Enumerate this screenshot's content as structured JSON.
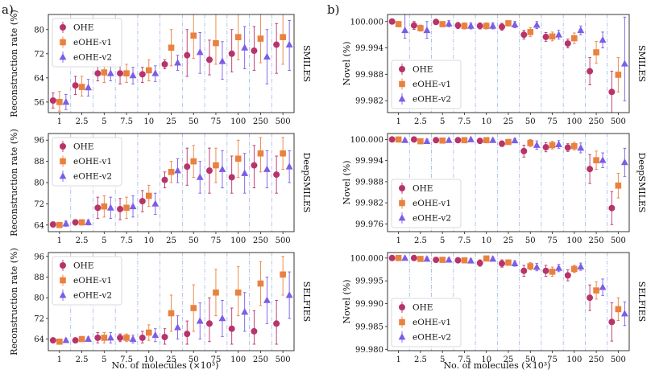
{
  "figure": {
    "panel_letters": [
      "a)",
      "b)"
    ],
    "shared_xlabel": "No. of molecules (×10³)"
  },
  "chart_data": [
    {
      "type": "scatter",
      "panel": "a)",
      "row": "SMILES",
      "ylabel": "Reconstruction rate (%)",
      "right_label": "SMILES",
      "categories": [
        "1",
        "2.5",
        "5",
        "7.5",
        "10",
        "25",
        "50",
        "75",
        "100",
        "250",
        "500"
      ],
      "ylim": [
        52.5,
        85
      ],
      "yticks": [
        56,
        64,
        72,
        80
      ],
      "ytick_labels": [
        "56",
        "64",
        "72",
        "80"
      ],
      "legend_position": "top-left",
      "series": [
        {
          "name": "OHE",
          "color": "#b8336a",
          "marker": "circle",
          "values": [
            56.5,
            61.5,
            65.5,
            65.5,
            65.2,
            68.5,
            71.5,
            70,
            72,
            73,
            75
          ],
          "low": [
            54,
            58.5,
            63,
            62,
            62.5,
            67,
            64.5,
            65,
            66,
            66.5,
            65.5
          ],
          "high": [
            59,
            64.5,
            68.5,
            68.5,
            67.5,
            70,
            80,
            76.5,
            80,
            81,
            82
          ]
        },
        {
          "name": "eOHE-v1",
          "color": "#e9813f",
          "marker": "square",
          "values": [
            56,
            61,
            65.8,
            65.5,
            66.5,
            74,
            78,
            75.5,
            77.5,
            77,
            77.5
          ],
          "low": [
            53,
            58,
            62.5,
            62.5,
            63,
            68,
            70.5,
            68.5,
            70,
            69,
            68.5
          ],
          "high": [
            59.5,
            64.5,
            69,
            68.5,
            70,
            80,
            85,
            85,
            85,
            85,
            85
          ]
        },
        {
          "name": "eOHE-v2",
          "color": "#7b5de6",
          "marker": "triangle",
          "values": [
            56,
            60.8,
            65.5,
            64.8,
            65.5,
            69,
            72.5,
            69.5,
            74,
            71,
            75
          ],
          "low": [
            53.5,
            58,
            63,
            62,
            62.8,
            66.5,
            65.5,
            63.5,
            67,
            62,
            66.5
          ],
          "high": [
            58.5,
            63.5,
            68,
            67.5,
            68,
            71.5,
            79,
            76,
            81,
            80,
            83
          ]
        }
      ]
    },
    {
      "type": "scatter",
      "panel": "a)",
      "row": "DeepSMILES",
      "ylabel": "Reconstruction rate (%)",
      "right_label": "DeepSMILES",
      "categories": [
        "1",
        "2.5",
        "5",
        "7.5",
        "10",
        "25",
        "50",
        "75",
        "100",
        "250",
        "500"
      ],
      "ylim": [
        61.5,
        98.5
      ],
      "yticks": [
        64,
        72,
        80,
        88,
        96
      ],
      "ytick_labels": [
        "64",
        "72",
        "80",
        "88",
        "96"
      ],
      "legend_position": "top-left",
      "series": [
        {
          "name": "OHE",
          "color": "#b8336a",
          "marker": "circle",
          "values": [
            64.2,
            65,
            70.5,
            70,
            73,
            81,
            86,
            84.5,
            82,
            86.5,
            83
          ],
          "low": [
            63.2,
            64,
            66.5,
            66,
            69,
            78,
            79,
            76,
            76,
            78,
            76
          ],
          "high": [
            65.2,
            66,
            74.5,
            74,
            77,
            84,
            93,
            93,
            90,
            94,
            90
          ]
        },
        {
          "name": "eOHE-v1",
          "color": "#e9813f",
          "marker": "square",
          "values": [
            64,
            65,
            71,
            70.5,
            75,
            84,
            88,
            86.5,
            89,
            91,
            91
          ],
          "low": [
            63,
            64,
            67,
            66.5,
            71,
            80,
            82,
            80,
            82,
            84,
            85
          ],
          "high": [
            65,
            66,
            75,
            74.5,
            79,
            88,
            94,
            93,
            96,
            97,
            97
          ]
        },
        {
          "name": "eOHE-v2",
          "color": "#7b5de6",
          "marker": "triangle",
          "values": [
            64.5,
            65,
            70.5,
            71,
            72,
            84.5,
            82,
            85,
            83.5,
            85,
            86
          ],
          "low": [
            63.5,
            64,
            66.5,
            67,
            68,
            80,
            76,
            78,
            76,
            78,
            80
          ],
          "high": [
            65.5,
            66,
            74.5,
            75,
            76,
            89,
            88,
            92,
            91,
            92,
            92
          ]
        }
      ]
    },
    {
      "type": "scatter",
      "panel": "a)",
      "row": "SELFIES",
      "ylabel": "Reconstruction rate (%)",
      "right_label": "SELFIES",
      "categories": [
        "1",
        "2.5",
        "5",
        "7.5",
        "10",
        "25",
        "50",
        "75",
        "100",
        "250",
        "500"
      ],
      "ylim": [
        59.5,
        97.5
      ],
      "yticks": [
        64,
        72,
        80,
        88,
        96
      ],
      "ytick_labels": [
        "64",
        "72",
        "80",
        "88",
        "96"
      ],
      "legend_position": "top-left",
      "series": [
        {
          "name": "OHE",
          "color": "#b8336a",
          "marker": "circle",
          "values": [
            63.5,
            63.5,
            64.5,
            64.5,
            64.5,
            64.8,
            66,
            70,
            68,
            67,
            70
          ],
          "low": [
            62.8,
            62.8,
            62.5,
            63,
            62.5,
            62,
            62,
            63,
            62,
            62,
            62
          ],
          "high": [
            64.2,
            64.2,
            66.5,
            66,
            67,
            68,
            71,
            80,
            76,
            75,
            79
          ]
        },
        {
          "name": "eOHE-v1",
          "color": "#e9813f",
          "marker": "square",
          "values": [
            63,
            64,
            64.5,
            64.5,
            66.5,
            74,
            76,
            82,
            82,
            85.5,
            89
          ],
          "low": [
            62.3,
            63.2,
            62.5,
            63,
            63.5,
            67,
            67,
            73,
            73,
            77,
            81
          ],
          "high": [
            63.7,
            64.8,
            66.5,
            66,
            69.5,
            81,
            85,
            91,
            92,
            94,
            96
          ]
        },
        {
          "name": "eOHE-v2",
          "color": "#7b5de6",
          "marker": "triangle",
          "values": [
            63.5,
            64,
            64.5,
            64,
            65.5,
            68.5,
            71,
            72,
            74.5,
            79,
            81
          ],
          "low": [
            62.8,
            63.2,
            62.5,
            62.5,
            63,
            64,
            64,
            65,
            67,
            70,
            72
          ],
          "high": [
            64.2,
            64.8,
            66.5,
            65.5,
            68,
            73,
            78,
            79,
            82,
            88,
            90
          ]
        }
      ]
    },
    {
      "type": "scatter",
      "panel": "b)",
      "row": "SMILES",
      "ylabel": "Novel (%)",
      "right_label": "SMILES",
      "categories": [
        "1",
        "2.5",
        "5",
        "7.5",
        "10",
        "25",
        "50",
        "75",
        "100",
        "250",
        "500"
      ],
      "ylim": [
        99.9793,
        100.0016
      ],
      "yticks": [
        99.982,
        99.988,
        99.994,
        100.0
      ],
      "ytick_labels": [
        "99.982",
        "99.988",
        "99.994",
        "100.000"
      ],
      "legend_position": "bottom-left",
      "series": [
        {
          "name": "OHE",
          "color": "#b8336a",
          "marker": "circle",
          "values": [
            100.0,
            99.9991,
            99.9999,
            99.9991,
            99.999,
            99.9988,
            99.997,
            99.9965,
            99.995,
            99.9887,
            99.984
          ],
          "low": [
            100.0,
            99.9982,
            99.9993,
            99.9984,
            99.9983,
            99.998,
            99.996,
            99.9955,
            99.994,
            99.9856,
            99.9793
          ],
          "high": [
            100.0,
            100.0,
            100.0,
            99.9998,
            99.9997,
            99.9996,
            99.998,
            99.9975,
            99.996,
            99.9918,
            99.9887
          ]
        },
        {
          "name": "eOHE-v1",
          "color": "#e9813f",
          "marker": "square",
          "values": [
            99.9994,
            99.9985,
            99.9994,
            99.999,
            99.999,
            99.9996,
            99.9976,
            99.9966,
            99.9962,
            99.993,
            99.9879
          ],
          "low": [
            99.9988,
            99.9978,
            99.9988,
            99.9983,
            99.9983,
            99.999,
            99.9966,
            99.9956,
            99.995,
            99.9905,
            99.984
          ],
          "high": [
            100.0,
            99.9992,
            100.0,
            99.9997,
            99.9997,
            100.0,
            99.9986,
            99.9976,
            99.9974,
            99.9955,
            99.9918
          ]
        },
        {
          "name": "eOHE-v2",
          "color": "#7b5de6",
          "marker": "triangle",
          "values": [
            99.998,
            99.998,
            99.9995,
            99.999,
            99.999,
            99.9993,
            99.9992,
            99.997,
            99.998,
            99.9958,
            99.9904
          ],
          "low": [
            99.9962,
            99.9962,
            99.9988,
            99.9983,
            99.9983,
            99.9986,
            99.9984,
            99.996,
            99.997,
            99.994,
            99.982
          ],
          "high": [
            100.0016,
            100.0,
            100.0002,
            99.9997,
            99.9997,
            100.0,
            100.0,
            99.998,
            99.999,
            99.9976,
            100.001
          ]
        }
      ]
    },
    {
      "type": "scatter",
      "panel": "b)",
      "row": "DeepSMILES",
      "ylabel": "Novel (%)",
      "right_label": "DeepSMILES",
      "categories": [
        "1",
        "2.5",
        "5",
        "7.5",
        "10",
        "25",
        "50",
        "75",
        "100",
        "250",
        "500"
      ],
      "ylim": [
        99.9738,
        100.0017
      ],
      "yticks": [
        99.976,
        99.982,
        99.988,
        99.994,
        100.0
      ],
      "ytick_labels": [
        "99.976",
        "99.982",
        "99.988",
        "99.994",
        "100.000"
      ],
      "legend_position": "bottom-left",
      "series": [
        {
          "name": "OHE",
          "color": "#b8336a",
          "marker": "circle",
          "values": [
            100.0,
            100.0,
            99.9998,
            99.9998,
            99.9996,
            99.9988,
            99.9967,
            99.9978,
            99.9977,
            99.9916,
            99.9805
          ],
          "low": [
            99.9996,
            99.9997,
            99.9994,
            99.9994,
            99.9992,
            99.998,
            99.995,
            99.9965,
            99.9966,
            99.9875,
            99.9758
          ],
          "high": [
            100.0004,
            100.0003,
            100.0002,
            100.0002,
            100.0,
            99.9996,
            99.9984,
            99.9991,
            99.9988,
            99.9957,
            99.9852
          ]
        },
        {
          "name": "eOHE-v1",
          "color": "#e9813f",
          "marker": "square",
          "values": [
            100.0,
            99.9995,
            99.9997,
            99.9998,
            99.9998,
            99.9993,
            99.999,
            99.9984,
            99.9981,
            99.9941,
            99.9869
          ],
          "low": [
            99.9996,
            99.9989,
            99.9993,
            99.9994,
            99.9994,
            99.9986,
            99.998,
            99.9973,
            99.997,
            99.9915,
            99.9834
          ],
          "high": [
            100.0004,
            100.0001,
            100.0001,
            100.0002,
            100.0002,
            100.0,
            100.0,
            99.9995,
            99.9992,
            99.9967,
            99.9904
          ]
        },
        {
          "name": "eOHE-v2",
          "color": "#7b5de6",
          "marker": "triangle",
          "values": [
            99.9998,
            99.9995,
            99.9998,
            100.0,
            99.9998,
            99.9997,
            99.9984,
            99.9986,
            99.9976,
            99.9941,
            99.9935
          ],
          "low": [
            99.9994,
            99.9989,
            99.9994,
            99.9996,
            99.9994,
            99.9992,
            99.9972,
            99.9975,
            99.9962,
            99.992,
            99.9895
          ],
          "high": [
            100.0002,
            100.0001,
            100.0002,
            100.0004,
            100.0002,
            100.0002,
            99.9996,
            99.9997,
            99.999,
            99.9962,
            99.9975
          ]
        }
      ]
    },
    {
      "type": "scatter",
      "panel": "b)",
      "row": "SELFIES",
      "ylabel": "Novel (%)",
      "right_label": "SELFIES",
      "categories": [
        "1",
        "2.5",
        "5",
        "7.5",
        "10",
        "25",
        "50",
        "75",
        "100",
        "250",
        "500"
      ],
      "ylim": [
        99.9797,
        100.0012
      ],
      "yticks": [
        99.98,
        99.985,
        99.99,
        99.995,
        100.0
      ],
      "ytick_labels": [
        "99.980",
        "99.985",
        "99.990",
        "99.995",
        "100.000"
      ],
      "legend_position": "bottom-left",
      "series": [
        {
          "name": "OHE",
          "color": "#b8336a",
          "marker": "circle",
          "values": [
            100.0,
            100.0,
            99.9996,
            99.9995,
            99.9989,
            99.9988,
            99.9972,
            99.9972,
            99.9962,
            99.9913,
            99.986
          ],
          "low": [
            99.9998,
            99.9998,
            99.9992,
            99.999,
            99.9982,
            99.998,
            99.996,
            99.996,
            99.995,
            99.9885,
            99.9818
          ],
          "high": [
            100.0002,
            100.0002,
            100.0,
            100.0,
            99.9996,
            99.9996,
            99.9984,
            99.9984,
            99.9974,
            99.9941,
            99.9902
          ]
        },
        {
          "name": "eOHE-v1",
          "color": "#e9813f",
          "marker": "square",
          "values": [
            100.0,
            99.9998,
            99.9996,
            99.9995,
            99.9999,
            99.999,
            99.9982,
            99.997,
            99.9976,
            99.9929,
            99.9888
          ],
          "low": [
            99.9998,
            99.9994,
            99.9992,
            99.999,
            99.9994,
            99.9984,
            99.9974,
            99.996,
            99.9968,
            99.991,
            99.9863
          ],
          "high": [
            100.0002,
            100.0002,
            100.0,
            100.0,
            100.0004,
            99.9996,
            99.999,
            99.998,
            99.9984,
            99.9948,
            99.9913
          ]
        },
        {
          "name": "eOHE-v2",
          "color": "#7b5de6",
          "marker": "triangle",
          "values": [
            100.0,
            99.9998,
            99.9996,
            99.9994,
            99.9998,
            99.9988,
            99.998,
            99.9978,
            99.9981,
            99.9936,
            99.9878
          ],
          "low": [
            99.9998,
            99.9994,
            99.9992,
            99.999,
            99.9994,
            99.9982,
            99.9972,
            99.997,
            99.9973,
            99.9918,
            99.9852
          ],
          "high": [
            100.0002,
            100.0002,
            100.0,
            99.9998,
            100.0002,
            99.9994,
            99.9988,
            99.9986,
            99.9989,
            99.9954,
            99.9904
          ]
        }
      ]
    }
  ]
}
